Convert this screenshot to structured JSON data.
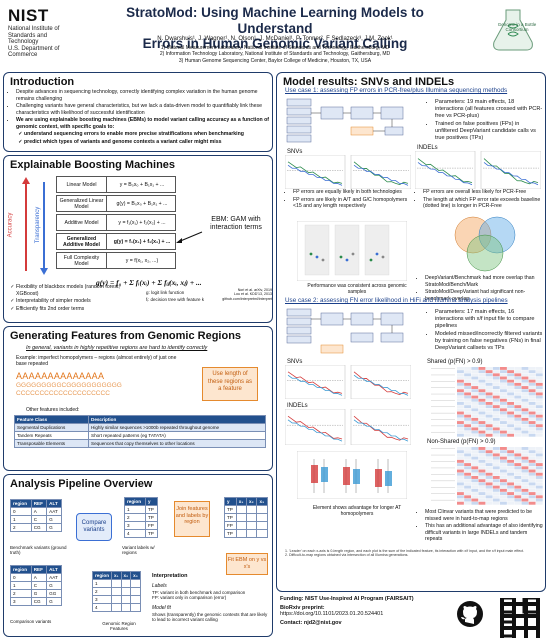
{
  "header": {
    "nist_word": "NIST",
    "nist_sub": "National Institute of\nStandards and Technology\nU.S. Department of Commerce",
    "title_line1": "StratoMod: Using Machine Learning Models to Understand",
    "title_line2": "Errors in Human Genomic Variant Calling",
    "authors": "N. Dwarshuis¹, J. Wagner¹, N. Olson¹, J. McDaniel¹, P. Tonner², F Sedlazeck³, J.M. Zook¹",
    "affil1": "1)  Material Measurement Laboratory, National Institute of Standards and Technology, Gaithersburg, MD",
    "affil2": "2)  Information Technology Laboratory, National Institute of Standards and Technology, Gaithersburg, MD",
    "affil3": "3)  Human Genome Sequencing Center, Baylor College of Medicine, Houston, TX, USA",
    "giab_label": "Genome in a Bottle\nConsortium"
  },
  "intro": {
    "title": "Introduction",
    "b1": "Despite advances in sequencing technology, correctly identifying complex variation in the human genome remains challenging",
    "b2": "Challenging variants have general characteristics, but we lack a data-driven model to quantifiably link these characteristics with likelihood of successful identification",
    "b3": "We are using explainable boosting machines (EBMs) to model variant calling accuracy as a function of genomic context, with specific goals to:",
    "g1": "understand sequencing errors to enable more precise stratifications when benchmarking",
    "g2": "predict which types of variants and genome contexts a variant caller might miss"
  },
  "ebm": {
    "title": "Explainable Boosting Machines",
    "rows": [
      {
        "label": "Linear Model",
        "eq": "y = B₀x₀ + B₁x₁ + ..."
      },
      {
        "label": "Generalized Linear Model",
        "eq": "g(y) = B₀x₀ + B₁x₁ + ..."
      },
      {
        "label": "Additive Model",
        "eq": "y = f₁(x₁) + f₂(x₂) + ..."
      },
      {
        "label": "Generalized Additive Model",
        "eq": "g(y) = f₁(x₁) + f₂(x₂) + ..."
      },
      {
        "label": "Full Complexity Model",
        "eq": "y = f(x₁, x₂, ...)"
      }
    ],
    "axis_accuracy": "Accuracy",
    "axis_transparency": "Transparency",
    "gam_note": "EBM: GAM with interaction terms",
    "formula": "g(y) = f₀ + Σ fᵢ(xᵢ) + Σ fᵢⱼ(xᵢ, xⱼ) + ...",
    "link_note": "g: logit link function",
    "tree_note": "fᵢ: decision tree with feature k",
    "cite": "Nori et al. arXiv, 2019\nLou et al. KDD'13, 2013\ngithub.com/interpretml/interpret",
    "b1": "Flexibility of blackbox models (random forest, XGBoost)",
    "b2": "Interpretability of simpler models",
    "b3": "Efficiently fits 2nd order terms"
  },
  "features": {
    "title": "Generating Features from Genomic Regions",
    "subtitle": "In general, variants in highly repetitive regions are hard to identify correctly",
    "example": "Example: imperfect homopolymers – regions (almost entirely) of just one base repeated",
    "seq1": "AAAAAAAAAAAAAA",
    "seq2": "GGGGGGGGGCGGGGGGGGGGG",
    "seq3": "CCCCCCCCCCCCCCCCCCCC",
    "length_note": "Use length of these regions as a feature",
    "other_label": "Other features included:",
    "table_headers": [
      "Feature Class",
      "Description"
    ],
    "table_rows": [
      [
        "Segmental Duplications",
        "Highly similar sequences >1000b repeated throughout genome"
      ],
      [
        "Tandem Repeats",
        "Short repeated patterns (eg TATATA)"
      ],
      [
        "Transposable Elements",
        "Sequences that copy themselves to other locations"
      ]
    ]
  },
  "pipeline": {
    "title": "Analysis Pipeline Overview",
    "bench_headers": [
      "region",
      "REF",
      "ALT"
    ],
    "bench_rows": [
      [
        "0",
        "A",
        "AAT"
      ],
      [
        "1",
        "C",
        "G"
      ],
      [
        "2",
        "CG",
        "G"
      ]
    ],
    "bench_label": "Benchmark variants (ground truth)",
    "comp_rows": [
      [
        "0",
        "A",
        "AAT"
      ],
      [
        "1",
        "C",
        "G"
      ],
      [
        "2",
        "G",
        "GG"
      ],
      [
        "3",
        "CG",
        "G"
      ]
    ],
    "comp_label": "Comparison variants",
    "compare": "Compare variants",
    "label_headers": [
      "region",
      "y"
    ],
    "label_rows": [
      [
        "1",
        "TP"
      ],
      [
        "2",
        "TP"
      ],
      [
        "3",
        "FP"
      ],
      [
        "4",
        "TP"
      ]
    ],
    "label_caption": "Variant labels w/ regions",
    "join": "Join features and labels by region",
    "feat_headers": [
      "region",
      "x₁",
      "x₂",
      "x₃"
    ],
    "feat_caption": "Genomic Region Features",
    "joined_headers": [
      "y",
      "x₁",
      "x₂",
      "x₃"
    ],
    "joined_rows": [
      [
        "TP"
      ],
      [
        "TP"
      ],
      [
        "FP"
      ],
      [
        "TP"
      ]
    ],
    "fit": "Fit EBM on y vs x's",
    "interp_title": "Interpretation",
    "labels_title": "Labels",
    "labels_text": "TP: variant in both benchmark and comparison\nFP: variant only in comparison (error)",
    "model_title": "Model fit",
    "model_text": "Shows (transparently) the genomic contexts that are likely to lead to incorrect variant calling"
  },
  "results": {
    "title": "Model results: SNVs and INDELs",
    "case1": "Use case 1: assessing FP errors in PCR-free/plus Illumina sequencing methods",
    "case1_b1": "Parameters: 19 main effects, 18 interactions (all features crossed with PCR-free vs PCR-plus)",
    "case1_b2": "Trained on false positives (FPs) in unfiltered DeepVariant candidate calls vs true positives (TPs)",
    "snvs": "SNVs",
    "indels": "INDELs",
    "c1_snv_b1": "FP errors are equally likely in both technologies",
    "c1_snv_b2": "FP errors are likely in A/T and G/C homopolymers <15 and any length respectively",
    "c1_ind_b1": "FP errors are overall less likely for PCR-Free",
    "c1_ind_b2": "The length at which FP error rate exceeds baseline (dotted line) is longer in PCR-Free",
    "perf_note": "Performance was consistent across genomic samples",
    "venn_b1": "DeepVariant/Benchmark had more overlap than StratoMod/Bench/Mark",
    "venn_b2": "StratoMod/DeepVariant had significant non-benchmark overlap",
    "case2": "Use case 2: assessing FN error likelihood in HiFi and Illumina analysis pipelines",
    "case2_b1": "Parameters: 17 main effects, 16 interactions with x/f input file to compare pipelines",
    "case2_b2": "Modeled missed/incorrectly filtered variants by training on false negatives (FNs) in final DeepVariant callsets vs TPs",
    "shared_title": "Shared (p(FN) > 0.9)",
    "nonshared_title": "Non-Shared (p(FN) > 0.9)",
    "hifi_note": "Element shows advantage for longer AT homopolymers",
    "ns_b1": "Most Clinvar variants that were predicted to be missed were in hard-to-map regions",
    "ns_b2": "This has an additional advantage of also identifying difficult variants in large INDELs and tandem repeats",
    "legend_pcrfree": "PCR-free",
    "legend_pcrplus": "PCR-plus",
    "legend_illumina": "Illumina",
    "legend_hifi": "HiFi",
    "footnote": "1. 'Leader' on each x-axis is 0-length region, and each plot is the sum of the indicated feature, its interaction with x/f input, and the x/f input main effect.\n2. Difficult-to-map regions obtained via intersection of all Illumina generations."
  },
  "footer": {
    "funding": "Funding: NIST Use-Inspired AI Program (FAIRSAIT)",
    "biorxiv_label": "BioRxiv preprint:",
    "biorxiv": "https://doi.org/10.1101/2023.01.20.524401",
    "contact": "Contact: njd2@nist.gov"
  }
}
